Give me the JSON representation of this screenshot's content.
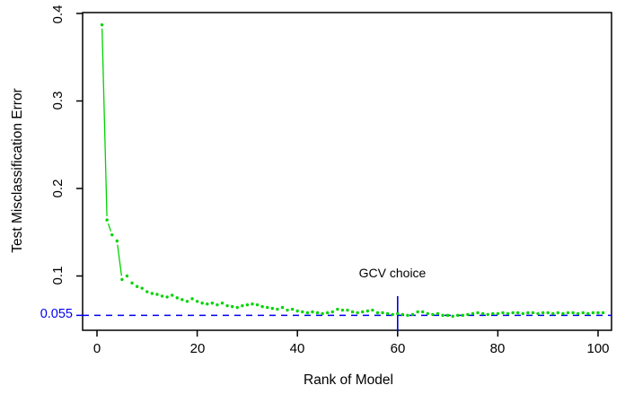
{
  "chart_data": {
    "type": "line",
    "title": "",
    "xlabel": "Rank of Model",
    "ylabel": "Test Misclassification Error",
    "xlim": [
      0,
      101
    ],
    "ylim": [
      0.04,
      0.4
    ],
    "grid": false,
    "x_ticks": [
      0,
      20,
      40,
      60,
      80,
      100
    ],
    "x_tick_labels": [
      "0",
      "20",
      "40",
      "60",
      "80",
      "100"
    ],
    "y_ticks": [
      0.1,
      0.2,
      0.3,
      0.4
    ],
    "y_tick_labels": [
      "0.1",
      "0.2",
      "0.3",
      "0.4"
    ],
    "series": [
      {
        "name": "test-misclassification-error",
        "color": "#00d300",
        "marker": "dot",
        "line_style": "segments-with-gaps",
        "x_rank_start": 1,
        "values": [
          0.387,
          0.164,
          0.147,
          0.14,
          0.096,
          0.1,
          0.092,
          0.088,
          0.086,
          0.082,
          0.08,
          0.079,
          0.077,
          0.076,
          0.078,
          0.075,
          0.073,
          0.071,
          0.074,
          0.071,
          0.069,
          0.068,
          0.069,
          0.067,
          0.069,
          0.066,
          0.065,
          0.064,
          0.066,
          0.067,
          0.068,
          0.067,
          0.065,
          0.064,
          0.063,
          0.062,
          0.064,
          0.061,
          0.062,
          0.06,
          0.059,
          0.058,
          0.059,
          0.058,
          0.057,
          0.058,
          0.059,
          0.062,
          0.061,
          0.061,
          0.059,
          0.058,
          0.059,
          0.06,
          0.061,
          0.058,
          0.058,
          0.057,
          0.056,
          0.057,
          0.056,
          0.055,
          0.056,
          0.059,
          0.059,
          0.057,
          0.056,
          0.057,
          0.055,
          0.055,
          0.054,
          0.055,
          0.055,
          0.056,
          0.057,
          0.058,
          0.057,
          0.056,
          0.057,
          0.057,
          0.058,
          0.057,
          0.058,
          0.058,
          0.057,
          0.058,
          0.058,
          0.057,
          0.058,
          0.058,
          0.057,
          0.058,
          0.057,
          0.058,
          0.058,
          0.057,
          0.058,
          0.057,
          0.058,
          0.058,
          0.058
        ]
      }
    ],
    "reference_line": {
      "y": 0.055,
      "label": "0.055",
      "color": "#0000ee",
      "style": "dashed"
    },
    "annotation": {
      "text": "GCV choice",
      "x": 60,
      "line_color": "#0000dd"
    },
    "axis_color": "#000000"
  }
}
